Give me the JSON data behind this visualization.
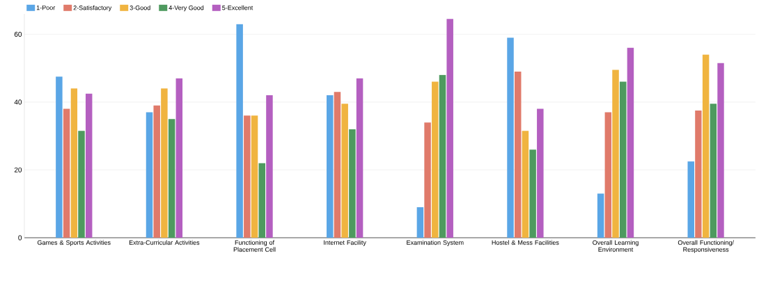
{
  "chart_data": {
    "type": "bar",
    "categories": [
      "Games & Sports Activities",
      "Extra-Curricular Activities",
      "Functioning of Placement Cell",
      "Internet Facility",
      "Examination System",
      "Hostel & Mess Facilities",
      "Overall Learning Environment",
      "Overall Functioning/ Responsiveness"
    ],
    "series": [
      {
        "name": "1-Poor",
        "color": "#5aa6e6",
        "values": [
          47.5,
          37,
          63,
          42,
          9,
          59,
          13,
          22.5
        ]
      },
      {
        "name": "2-Satisfactory",
        "color": "#e07a6a",
        "values": [
          38,
          39,
          36,
          43,
          34,
          49,
          37,
          37.5
        ]
      },
      {
        "name": "3-Good",
        "color": "#f0b440",
        "values": [
          44,
          44,
          36,
          39.5,
          46,
          31.5,
          49.5,
          54
        ]
      },
      {
        "name": "4-Very Good",
        "color": "#4e9a5f",
        "values": [
          31.5,
          35,
          22,
          32,
          48,
          26,
          46,
          39.5
        ]
      },
      {
        "name": "5-Excellent",
        "color": "#b45fc0",
        "values": [
          42.5,
          47,
          42,
          47,
          64.5,
          38,
          56,
          51.5
        ]
      }
    ],
    "ylim": [
      0,
      66
    ],
    "yticks": [
      0,
      20,
      40,
      60
    ],
    "grid": "y",
    "legend": "top left"
  }
}
